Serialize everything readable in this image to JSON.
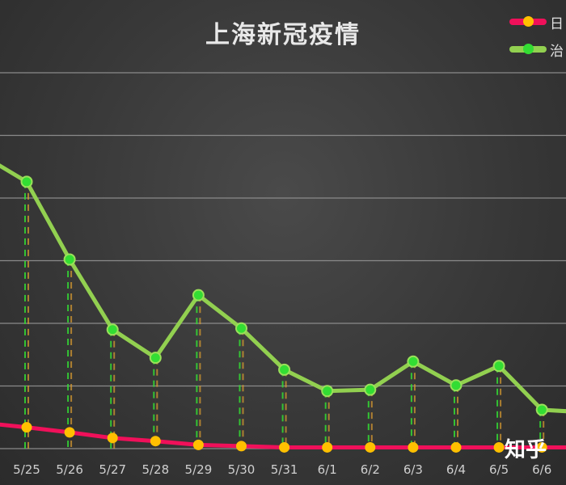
{
  "chart_data": {
    "type": "line",
    "title": "上海新冠疫情",
    "categories": [
      "5/25",
      "5/26",
      "5/27",
      "5/28",
      "5/29",
      "5/30",
      "5/31",
      "6/1",
      "6/2",
      "6/3",
      "6/4",
      "6/5",
      "6/6"
    ],
    "series": [
      {
        "name": "日",
        "color": "#f0105a",
        "marker_color": "#ffc000",
        "values": [
          0.34,
          0.26,
          0.17,
          0.12,
          0.06,
          0.04,
          0.02,
          0.02,
          0.02,
          0.02,
          0.02,
          0.02,
          0.02
        ]
      },
      {
        "name": "治",
        "color": "#92d050",
        "marker_color": "#33dd33",
        "values": [
          4.26,
          3.02,
          1.9,
          1.45,
          2.45,
          1.92,
          1.26,
          0.92,
          0.94,
          1.39,
          1.01,
          1.32,
          0.62
        ]
      }
    ],
    "ylim": [
      0,
      6
    ],
    "y_tick_labels_shown": false,
    "grid": true,
    "legend_position": "top-right",
    "drop_lines": "dashed"
  },
  "watermark": "知乎"
}
